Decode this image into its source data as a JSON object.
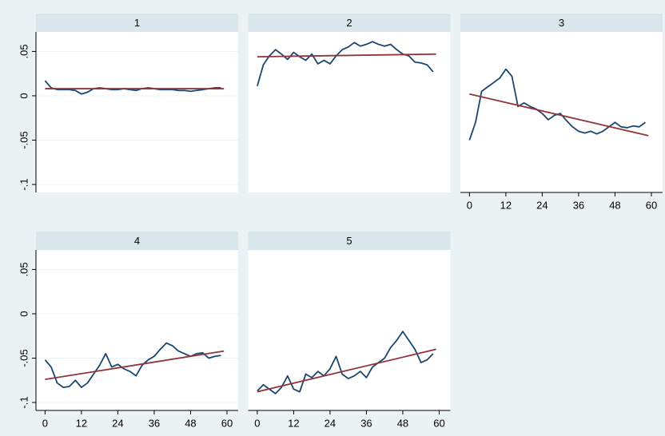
{
  "chart_data": [
    {
      "type": "line",
      "title": "1",
      "xlim": [
        -3,
        63.7
      ],
      "ylim": [
        -0.109,
        0.072
      ],
      "yticks": [
        {
          "value": 0.05,
          "label": ".05"
        },
        0,
        {
          "value": -0.05,
          "label": "-.05"
        },
        {
          "value": -0.1,
          "label": "-.1"
        }
      ],
      "series": [
        {
          "color": "#1a476f",
          "x": [
            0,
            2,
            4,
            6,
            8,
            10,
            12,
            14,
            16,
            18,
            20,
            22,
            24,
            26,
            28,
            30,
            32,
            34,
            36,
            38,
            40,
            42,
            44,
            46,
            48,
            50,
            52,
            54,
            56,
            58
          ],
          "values": [
            0.017,
            0.009,
            0.007,
            0.007,
            0.007,
            0.006,
            0.002,
            0.004,
            0.008,
            0.009,
            0.008,
            0.007,
            0.007,
            0.008,
            0.007,
            0.006,
            0.008,
            0.009,
            0.008,
            0.007,
            0.007,
            0.007,
            0.006,
            0.006,
            0.005,
            0.006,
            0.007,
            0.008,
            0.009,
            0.009
          ]
        },
        {
          "color": "#90353b",
          "x": [
            0,
            59
          ],
          "values": [
            0.008,
            0.008
          ]
        }
      ]
    },
    {
      "type": "line",
      "title": "2",
      "xlim": [
        -3,
        63.7
      ],
      "ylim": [
        -0.109,
        0.072
      ],
      "series": [
        {
          "color": "#1a476f",
          "x": [
            0,
            2,
            4,
            6,
            8,
            10,
            12,
            14,
            16,
            18,
            20,
            22,
            24,
            26,
            28,
            30,
            32,
            34,
            36,
            38,
            40,
            42,
            44,
            46,
            48,
            50,
            52,
            54,
            56,
            58
          ],
          "values": [
            0.011,
            0.035,
            0.045,
            0.052,
            0.047,
            0.041,
            0.049,
            0.044,
            0.04,
            0.047,
            0.036,
            0.04,
            0.036,
            0.045,
            0.052,
            0.055,
            0.06,
            0.056,
            0.058,
            0.061,
            0.058,
            0.056,
            0.058,
            0.052,
            0.047,
            0.045,
            0.038,
            0.037,
            0.035,
            0.027
          ]
        },
        {
          "color": "#90353b",
          "x": [
            0,
            59
          ],
          "values": [
            0.044,
            0.047
          ]
        }
      ]
    },
    {
      "type": "line",
      "title": "3",
      "xlim": [
        -3,
        63.7
      ],
      "ylim": [
        -0.109,
        0.072
      ],
      "xticks": [
        0,
        12,
        24,
        36,
        48,
        60
      ],
      "series": [
        {
          "color": "#1a476f",
          "x": [
            0,
            2,
            4,
            6,
            8,
            10,
            12,
            14,
            16,
            18,
            20,
            22,
            24,
            26,
            28,
            30,
            32,
            34,
            36,
            38,
            40,
            42,
            44,
            46,
            48,
            50,
            52,
            54,
            56,
            58
          ],
          "values": [
            -0.05,
            -0.03,
            0.005,
            0.01,
            0.015,
            0.02,
            0.03,
            0.022,
            -0.012,
            -0.008,
            -0.012,
            -0.015,
            -0.02,
            -0.027,
            -0.022,
            -0.02,
            -0.028,
            -0.035,
            -0.04,
            -0.042,
            -0.04,
            -0.043,
            -0.04,
            -0.035,
            -0.03,
            -0.035,
            -0.036,
            -0.034,
            -0.035,
            -0.03
          ]
        },
        {
          "color": "#90353b",
          "x": [
            0,
            59
          ],
          "values": [
            0.002,
            -0.045
          ]
        }
      ]
    },
    {
      "type": "line",
      "title": "4",
      "xlim": [
        -3,
        63.7
      ],
      "ylim": [
        -0.109,
        0.072
      ],
      "yticks": [
        {
          "value": 0.05,
          "label": ".05"
        },
        0,
        {
          "value": -0.05,
          "label": "-.05"
        },
        {
          "value": -0.1,
          "label": "-.1"
        }
      ],
      "xticks": [
        0,
        12,
        24,
        36,
        48,
        60
      ],
      "series": [
        {
          "color": "#1a476f",
          "x": [
            0,
            2,
            4,
            6,
            8,
            10,
            12,
            14,
            16,
            18,
            20,
            22,
            24,
            26,
            28,
            30,
            32,
            34,
            36,
            38,
            40,
            42,
            44,
            46,
            48,
            50,
            52,
            54,
            56,
            58
          ],
          "values": [
            -0.052,
            -0.06,
            -0.078,
            -0.083,
            -0.082,
            -0.075,
            -0.083,
            -0.078,
            -0.068,
            -0.058,
            -0.045,
            -0.06,
            -0.057,
            -0.062,
            -0.065,
            -0.07,
            -0.058,
            -0.052,
            -0.048,
            -0.04,
            -0.033,
            -0.036,
            -0.042,
            -0.045,
            -0.048,
            -0.045,
            -0.044,
            -0.05,
            -0.048,
            -0.047
          ]
        },
        {
          "color": "#90353b",
          "x": [
            0,
            59
          ],
          "values": [
            -0.074,
            -0.042
          ]
        }
      ]
    },
    {
      "type": "line",
      "title": "5",
      "xlim": [
        -3,
        63.7
      ],
      "ylim": [
        -0.109,
        0.072
      ],
      "xticks": [
        0,
        12,
        24,
        36,
        48,
        60
      ],
      "series": [
        {
          "color": "#1a476f",
          "x": [
            0,
            2,
            4,
            6,
            8,
            10,
            12,
            14,
            16,
            18,
            20,
            22,
            24,
            26,
            28,
            30,
            32,
            34,
            36,
            38,
            40,
            42,
            44,
            46,
            48,
            50,
            52,
            54,
            56,
            58
          ],
          "values": [
            -0.087,
            -0.08,
            -0.085,
            -0.09,
            -0.083,
            -0.07,
            -0.085,
            -0.088,
            -0.068,
            -0.072,
            -0.065,
            -0.07,
            -0.062,
            -0.048,
            -0.068,
            -0.073,
            -0.07,
            -0.065,
            -0.072,
            -0.06,
            -0.055,
            -0.05,
            -0.038,
            -0.03,
            -0.02,
            -0.03,
            -0.04,
            -0.055,
            -0.052,
            -0.045
          ]
        },
        {
          "color": "#90353b",
          "x": [
            0,
            59
          ],
          "values": [
            -0.088,
            -0.04
          ]
        }
      ]
    }
  ]
}
